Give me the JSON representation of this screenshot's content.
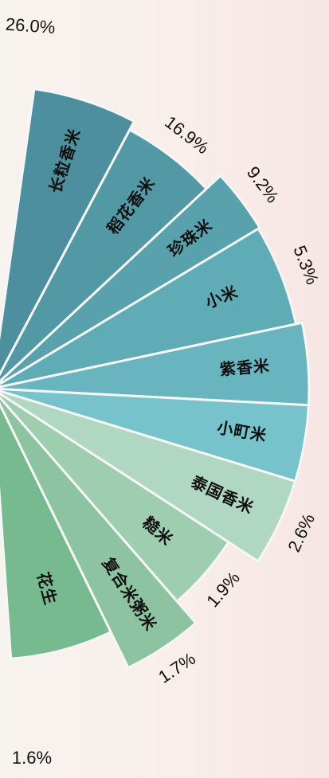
{
  "chart_data": {
    "type": "pie",
    "slices": [
      {
        "label": "长粒香米",
        "value": 26.0,
        "value_label": "26.0%",
        "color": "#4d8f9e"
      },
      {
        "label": "稻花香米",
        "value": 16.9,
        "value_label": "16.9%",
        "color": "#5398a5"
      },
      {
        "label": "珍珠米",
        "value": 9.2,
        "value_label": "9.2%",
        "color": "#58a1ad"
      },
      {
        "label": "小米",
        "value": 5.3,
        "value_label": "5.3%",
        "color": "#5fabb6"
      },
      {
        "label": "紫香米",
        "value": 5.3,
        "value_label": "",
        "color": "#68b5bf"
      },
      {
        "label": "小町米",
        "value": 5.3,
        "value_label": "",
        "color": "#76c3cc"
      },
      {
        "label": "泰国香米",
        "value": 2.6,
        "value_label": "2.6%",
        "color": "#b0d7c1"
      },
      {
        "label": "糙米",
        "value": 1.9,
        "value_label": "1.9%",
        "color": "#9fcdaf"
      },
      {
        "label": "复合米粥米",
        "value": 1.7,
        "value_label": "1.7%",
        "color": "#8dc3a0"
      },
      {
        "label": "花生",
        "value": 1.6,
        "value_label": "1.6%",
        "color": "#78ba8f"
      }
    ]
  }
}
